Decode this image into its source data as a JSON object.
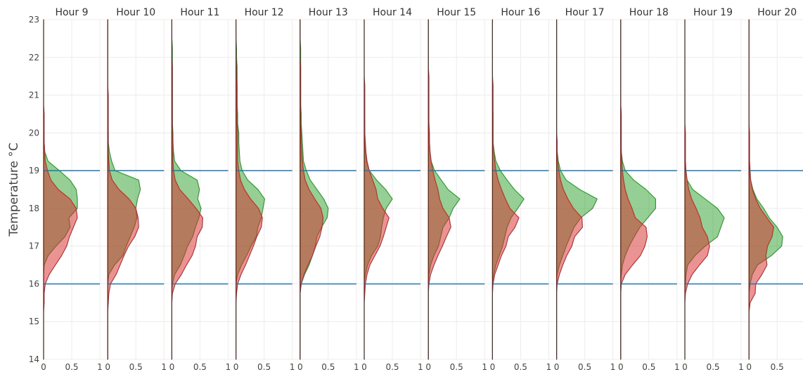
{
  "chart_data": {
    "type": "area",
    "ylabel": "Temperature °C",
    "ylim": [
      14,
      23
    ],
    "y_ticks": [
      14,
      15,
      16,
      17,
      18,
      19,
      20,
      21,
      22,
      23
    ],
    "xlim": [
      0,
      1
    ],
    "x_ticks": [
      0,
      0.5,
      1
    ],
    "x_tick_labels": [
      "0",
      "0.5",
      "1"
    ],
    "reference_lines": [
      16,
      19
    ],
    "colors": {
      "series_a": "#2ca02c",
      "series_a_fill": "rgba(44,160,44,0.5)",
      "series_b": "#d62728",
      "series_b_fill": "rgba(214,39,40,0.5)",
      "reference": "#1f77b4"
    },
    "y_grid": [
      14,
      14.25,
      14.5,
      14.75,
      15,
      15.25,
      15.5,
      15.75,
      16,
      16.25,
      16.5,
      16.75,
      17,
      17.25,
      17.5,
      17.75,
      18,
      18.25,
      18.5,
      18.75,
      19,
      19.25,
      19.5,
      19.75,
      20,
      20.25,
      20.5,
      20.75,
      21,
      21.25,
      21.5,
      21.75,
      22,
      22.25,
      22.5,
      22.75,
      23
    ],
    "panels": [
      {
        "title": "Hour 9",
        "series_a": [
          0,
          0,
          0,
          0,
          0,
          0,
          0,
          0,
          0,
          0,
          0.01,
          0.08,
          0.22,
          0.38,
          0.47,
          0.45,
          0.6,
          0.6,
          0.58,
          0.47,
          0.28,
          0.08,
          0.02,
          0.01,
          0,
          0,
          0,
          0,
          0,
          0,
          0,
          0,
          0,
          0,
          0,
          0,
          0
        ],
        "series_b": [
          0,
          0,
          0,
          0,
          0,
          0,
          0.01,
          0.01,
          0.03,
          0.1,
          0.21,
          0.32,
          0.41,
          0.46,
          0.53,
          0.6,
          0.58,
          0.47,
          0.26,
          0.13,
          0.07,
          0.03,
          0.02,
          0.01,
          0.01,
          0.01,
          0.01,
          0,
          0,
          0,
          0,
          0,
          0,
          0,
          0,
          0,
          0
        ]
      },
      {
        "title": "Hour 10",
        "series_a": [
          0,
          0,
          0,
          0,
          0,
          0,
          0,
          0,
          0,
          0.02,
          0.12,
          0.27,
          0.33,
          0.4,
          0.47,
          0.52,
          0.5,
          0.53,
          0.58,
          0.55,
          0.13,
          0.07,
          0.03,
          0.01,
          0.01,
          0,
          0,
          0,
          0,
          0,
          0,
          0,
          0,
          0,
          0,
          0,
          0
        ],
        "series_b": [
          0,
          0,
          0,
          0,
          0,
          0,
          0.01,
          0.02,
          0.05,
          0.15,
          0.22,
          0.29,
          0.37,
          0.48,
          0.55,
          0.54,
          0.5,
          0.38,
          0.2,
          0.08,
          0.03,
          0.02,
          0.01,
          0.01,
          0.01,
          0.01,
          0.01,
          0.01,
          0.01,
          0,
          0,
          0,
          0,
          0,
          0,
          0,
          0
        ]
      },
      {
        "title": "Hour 11",
        "series_a": [
          0,
          0,
          0,
          0,
          0,
          0,
          0,
          0,
          0.01,
          0.05,
          0.15,
          0.22,
          0.28,
          0.37,
          0.42,
          0.48,
          0.52,
          0.46,
          0.49,
          0.45,
          0.16,
          0.05,
          0.03,
          0.02,
          0.02,
          0.01,
          0.01,
          0.01,
          0.01,
          0.01,
          0.01,
          0.01,
          0.01,
          0.01,
          0,
          0,
          0
        ],
        "series_b": [
          0,
          0,
          0,
          0,
          0,
          0,
          0,
          0.01,
          0.06,
          0.17,
          0.26,
          0.36,
          0.42,
          0.45,
          0.54,
          0.55,
          0.43,
          0.29,
          0.14,
          0.06,
          0.03,
          0.02,
          0.02,
          0.02,
          0.01,
          0.01,
          0.01,
          0.01,
          0.01,
          0.01,
          0.01,
          0.01,
          0,
          0,
          0,
          0,
          0
        ]
      },
      {
        "title": "Hour 12",
        "series_a": [
          0,
          0,
          0,
          0,
          0,
          0,
          0,
          0,
          0,
          0.03,
          0.1,
          0.19,
          0.27,
          0.36,
          0.39,
          0.45,
          0.48,
          0.51,
          0.39,
          0.21,
          0.11,
          0.07,
          0.06,
          0.05,
          0.05,
          0.03,
          0.03,
          0.02,
          0.02,
          0.02,
          0.02,
          0.02,
          0.01,
          0.01,
          0,
          0,
          0
        ],
        "series_b": [
          0,
          0,
          0,
          0,
          0,
          0,
          0,
          0.01,
          0.03,
          0.09,
          0.17,
          0.24,
          0.31,
          0.37,
          0.45,
          0.47,
          0.4,
          0.26,
          0.15,
          0.08,
          0.05,
          0.03,
          0.03,
          0.03,
          0.03,
          0.02,
          0.02,
          0.02,
          0.02,
          0.02,
          0.01,
          0.01,
          0,
          0,
          0,
          0,
          0
        ]
      },
      {
        "title": "Hour 13",
        "series_a": [
          0,
          0,
          0,
          0,
          0,
          0,
          0,
          0,
          0.02,
          0.08,
          0.16,
          0.22,
          0.27,
          0.3,
          0.38,
          0.48,
          0.5,
          0.42,
          0.3,
          0.18,
          0.11,
          0.06,
          0.05,
          0.04,
          0.03,
          0.02,
          0.02,
          0.01,
          0.01,
          0.01,
          0.01,
          0.01,
          0.01,
          0.01,
          0,
          0,
          0
        ],
        "series_b": [
          0,
          0,
          0,
          0,
          0,
          0,
          0,
          0,
          0.02,
          0.07,
          0.14,
          0.22,
          0.28,
          0.35,
          0.39,
          0.41,
          0.37,
          0.26,
          0.16,
          0.09,
          0.06,
          0.04,
          0.03,
          0.02,
          0.02,
          0.01,
          0.01,
          0.01,
          0.01,
          0.01,
          0.01,
          0.01,
          0,
          0,
          0,
          0,
          0
        ]
      },
      {
        "title": "Hour 14",
        "series_a": [
          0,
          0,
          0,
          0,
          0,
          0,
          0,
          0,
          0,
          0.02,
          0.06,
          0.13,
          0.24,
          0.29,
          0.31,
          0.34,
          0.39,
          0.5,
          0.38,
          0.22,
          0.09,
          0.04,
          0.02,
          0.01,
          0.01,
          0.01,
          0,
          0,
          0,
          0,
          0,
          0,
          0,
          0,
          0,
          0,
          0
        ],
        "series_b": [
          0,
          0,
          0,
          0,
          0,
          0,
          0,
          0.01,
          0.02,
          0.05,
          0.1,
          0.19,
          0.28,
          0.34,
          0.39,
          0.44,
          0.33,
          0.24,
          0.21,
          0.15,
          0.09,
          0.05,
          0.03,
          0.02,
          0.01,
          0.01,
          0.01,
          0.01,
          0.01,
          0.01,
          0,
          0,
          0,
          0,
          0,
          0,
          0
        ]
      },
      {
        "title": "Hour 15",
        "series_a": [
          0,
          0,
          0,
          0,
          0,
          0,
          0,
          0,
          0,
          0.01,
          0.04,
          0.1,
          0.18,
          0.22,
          0.26,
          0.37,
          0.44,
          0.56,
          0.35,
          0.23,
          0.11,
          0.05,
          0.03,
          0.02,
          0.01,
          0.01,
          0,
          0,
          0,
          0,
          0,
          0,
          0,
          0,
          0,
          0,
          0
        ],
        "series_b": [
          0,
          0,
          0,
          0,
          0,
          0,
          0,
          0,
          0.01,
          0.04,
          0.1,
          0.17,
          0.25,
          0.32,
          0.4,
          0.37,
          0.26,
          0.2,
          0.17,
          0.12,
          0.08,
          0.05,
          0.03,
          0.02,
          0.02,
          0.01,
          0.01,
          0.01,
          0.01,
          0.01,
          0.01,
          0,
          0,
          0,
          0,
          0,
          0
        ]
      },
      {
        "title": "Hour 16",
        "series_a": [
          0,
          0,
          0,
          0,
          0,
          0,
          0,
          0,
          0,
          0.02,
          0.06,
          0.12,
          0.18,
          0.22,
          0.26,
          0.33,
          0.45,
          0.56,
          0.39,
          0.26,
          0.14,
          0.06,
          0.03,
          0.01,
          0.01,
          0.01,
          0.01,
          0,
          0,
          0,
          0,
          0,
          0,
          0,
          0,
          0,
          0
        ],
        "series_b": [
          0,
          0,
          0,
          0,
          0,
          0,
          0,
          0,
          0.01,
          0.04,
          0.1,
          0.16,
          0.24,
          0.28,
          0.4,
          0.47,
          0.31,
          0.23,
          0.16,
          0.1,
          0.06,
          0.04,
          0.02,
          0.01,
          0.01,
          0.01,
          0.01,
          0.01,
          0.01,
          0.01,
          0,
          0,
          0,
          0,
          0,
          0,
          0
        ]
      },
      {
        "title": "Hour 17",
        "series_a": [
          0,
          0,
          0,
          0,
          0,
          0,
          0,
          0,
          0,
          0.01,
          0.05,
          0.11,
          0.17,
          0.24,
          0.31,
          0.43,
          0.64,
          0.72,
          0.41,
          0.17,
          0.07,
          0.03,
          0.01,
          0.01,
          0,
          0,
          0,
          0,
          0,
          0,
          0,
          0,
          0,
          0,
          0,
          0,
          0
        ],
        "series_b": [
          0,
          0,
          0,
          0,
          0,
          0,
          0,
          0,
          0.01,
          0.05,
          0.11,
          0.18,
          0.27,
          0.32,
          0.46,
          0.45,
          0.3,
          0.2,
          0.12,
          0.07,
          0.04,
          0.02,
          0.01,
          0.01,
          0,
          0,
          0,
          0,
          0,
          0,
          0,
          0,
          0,
          0,
          0,
          0,
          0
        ]
      },
      {
        "title": "Hour 18",
        "series_a": [
          0,
          0,
          0,
          0,
          0,
          0,
          0,
          0,
          0,
          0.01,
          0.03,
          0.08,
          0.15,
          0.24,
          0.34,
          0.48,
          0.62,
          0.62,
          0.45,
          0.23,
          0.08,
          0.03,
          0.01,
          0,
          0,
          0,
          0,
          0,
          0,
          0,
          0,
          0,
          0,
          0,
          0,
          0,
          0
        ],
        "series_b": [
          0,
          0,
          0,
          0,
          0,
          0,
          0,
          0,
          0.01,
          0.08,
          0.21,
          0.35,
          0.43,
          0.47,
          0.45,
          0.26,
          0.2,
          0.13,
          0.08,
          0.05,
          0.03,
          0.02,
          0.01,
          0.01,
          0.01,
          0.01,
          0.01,
          0,
          0,
          0,
          0,
          0,
          0,
          0,
          0,
          0,
          0
        ]
      },
      {
        "title": "Hour 19",
        "series_a": [
          0,
          0,
          0,
          0,
          0,
          0,
          0,
          0,
          0.01,
          0.02,
          0.05,
          0.18,
          0.36,
          0.58,
          0.64,
          0.7,
          0.58,
          0.36,
          0.14,
          0.04,
          0.01,
          0,
          0,
          0,
          0,
          0,
          0,
          0,
          0,
          0,
          0,
          0,
          0,
          0,
          0,
          0,
          0
        ],
        "series_b": [
          0,
          0,
          0,
          0,
          0,
          0,
          0,
          0.01,
          0.05,
          0.13,
          0.26,
          0.4,
          0.44,
          0.4,
          0.31,
          0.27,
          0.2,
          0.12,
          0.07,
          0.04,
          0.02,
          0.01,
          0.01,
          0.01,
          0.01,
          0,
          0,
          0,
          0,
          0,
          0,
          0,
          0,
          0,
          0,
          0,
          0
        ]
      },
      {
        "title": "Hour 20",
        "series_a": [
          0,
          0,
          0,
          0,
          0,
          0,
          0,
          0,
          0.02,
          0.06,
          0.15,
          0.4,
          0.58,
          0.6,
          0.5,
          0.36,
          0.26,
          0.14,
          0.07,
          0.03,
          0.01,
          0.01,
          0,
          0,
          0,
          0,
          0,
          0,
          0,
          0,
          0,
          0,
          0,
          0,
          0,
          0,
          0
        ],
        "series_b": [
          0,
          0,
          0,
          0,
          0,
          0,
          0.02,
          0.11,
          0.12,
          0.23,
          0.32,
          0.3,
          0.33,
          0.41,
          0.44,
          0.32,
          0.2,
          0.12,
          0.06,
          0.03,
          0.02,
          0.01,
          0.01,
          0.01,
          0.01,
          0,
          0,
          0,
          0,
          0,
          0,
          0,
          0,
          0,
          0,
          0,
          0
        ]
      }
    ]
  }
}
